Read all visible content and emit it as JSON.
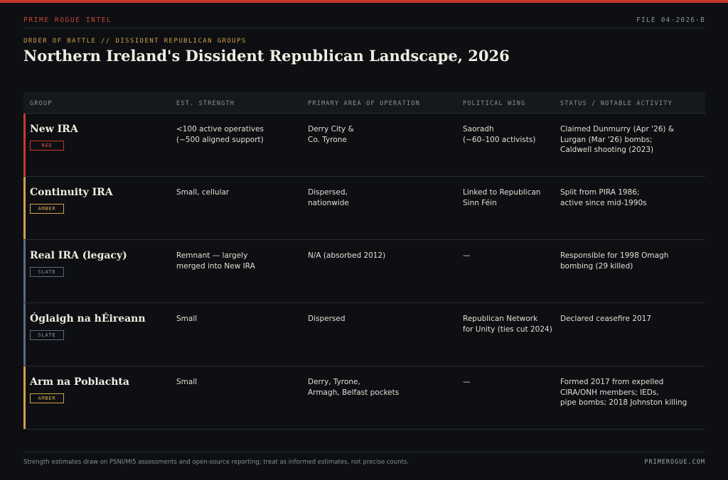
{
  "header": {
    "brand": "PRIME ROGUE INTEL",
    "file_no": "FILE 04-2026-B",
    "kicker": "ORDER OF BATTLE // DISSIDENT REPUBLICAN GROUPS",
    "title": "Northern Ireland's Dissident Republican Landscape, 2026"
  },
  "table": {
    "columns": [
      "GROUP",
      "EST. STRENGTH",
      "PRIMARY AREA OF OPERATION",
      "POLITICAL WING",
      "STATUS / NOTABLE ACTIVITY"
    ],
    "rows": [
      {
        "group": "New IRA",
        "badge": "RED",
        "accent": "#c8372d",
        "strength": "<100 active operatives\n(~500 aligned support)",
        "area": "Derry City &\nCo. Tyrone",
        "wing": "Saoradh\n(~60–100 activists)",
        "status": "Claimed Dunmurry (Apr '26) &\nLurgan (Mar '26) bombs;\nCaldwell shooting (2023)"
      },
      {
        "group": "Continuity IRA",
        "badge": "AMBER",
        "accent": "#d3a04a",
        "strength": "Small, cellular",
        "area": "Dispersed,\nnationwide",
        "wing": "Linked to Republican\nSinn Féin",
        "status": "Split from PIRA 1986;\nactive since mid-1990s"
      },
      {
        "group": "Real IRA (legacy)",
        "badge": "SLATE",
        "accent": "#5b6b80",
        "strength": "Remnant — largely\nmerged into New IRA",
        "area": "N/A (absorbed 2012)",
        "wing": "—",
        "status": "Responsible for 1998 Omagh\nbombing (29 killed)"
      },
      {
        "group": "Óglaigh na hÉireann",
        "badge": "SLATE",
        "accent": "#5b6b80",
        "strength": "Small",
        "area": "Dispersed",
        "wing": "Republican Network\nfor Unity (ties cut 2024)",
        "status": "Declared ceasefire 2017"
      },
      {
        "group": "Arm na Poblachta",
        "badge": "AMBER",
        "accent": "#d3a04a",
        "strength": "Small",
        "area": "Derry, Tyrone,\nArmagh, Belfast pockets",
        "wing": "—",
        "status": "Formed 2017 from expelled\nCIRA/ONH members; IEDs,\npipe bombs; 2018 Johnston killing"
      }
    ]
  },
  "footer": {
    "note": "Strength estimates draw on PSNI/MI5 assessments and open-source reporting; treat as informed estimates, not precise counts.",
    "site": "PRIMEROGUE.COM"
  },
  "colors": {
    "brand_red": "#c8372d",
    "amber": "#d3a04a",
    "slate": "#5b6b80",
    "badge_red_text": "#d9574c",
    "badge_amber_text": "#d9a64f",
    "badge_slate_text": "#8c9bb0"
  }
}
